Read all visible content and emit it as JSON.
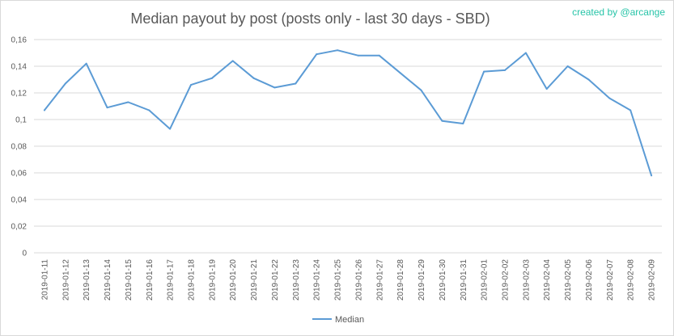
{
  "chart_data": {
    "type": "line",
    "title": "Median payout by post (posts only - last 30 days - SBD)",
    "credit": "created by @arcange",
    "xlabel": "",
    "ylabel": "",
    "ylim": [
      0,
      0.16
    ],
    "yticks": [
      "0",
      "0,02",
      "0,04",
      "0,06",
      "0,08",
      "0,1",
      "0,12",
      "0,14",
      "0,16"
    ],
    "grid": true,
    "legend": "bottom",
    "categories": [
      "2019-01-11",
      "2019-01-12",
      "2019-01-13",
      "2019-01-14",
      "2019-01-15",
      "2019-01-16",
      "2019-01-17",
      "2019-01-18",
      "2019-01-19",
      "2019-01-20",
      "2019-01-21",
      "2019-01-22",
      "2019-01-23",
      "2019-01-24",
      "2019-01-25",
      "2019-01-26",
      "2019-01-27",
      "2019-01-28",
      "2019-01-29",
      "2019-01-30",
      "2019-01-31",
      "2019-02-01",
      "2019-02-02",
      "2019-02-03",
      "2019-02-04",
      "2019-02-05",
      "2019-02-06",
      "2019-02-07",
      "2019-02-08",
      "2019-02-09"
    ],
    "series": [
      {
        "name": "Median",
        "color": "#5b9bd5",
        "values": [
          0.107,
          0.127,
          0.142,
          0.109,
          0.113,
          0.107,
          0.093,
          0.126,
          0.131,
          0.144,
          0.131,
          0.124,
          0.127,
          0.149,
          0.152,
          0.148,
          0.148,
          0.135,
          0.122,
          0.099,
          0.097,
          0.136,
          0.137,
          0.15,
          0.123,
          0.14,
          0.13,
          0.116,
          0.107,
          0.058
        ]
      }
    ]
  }
}
